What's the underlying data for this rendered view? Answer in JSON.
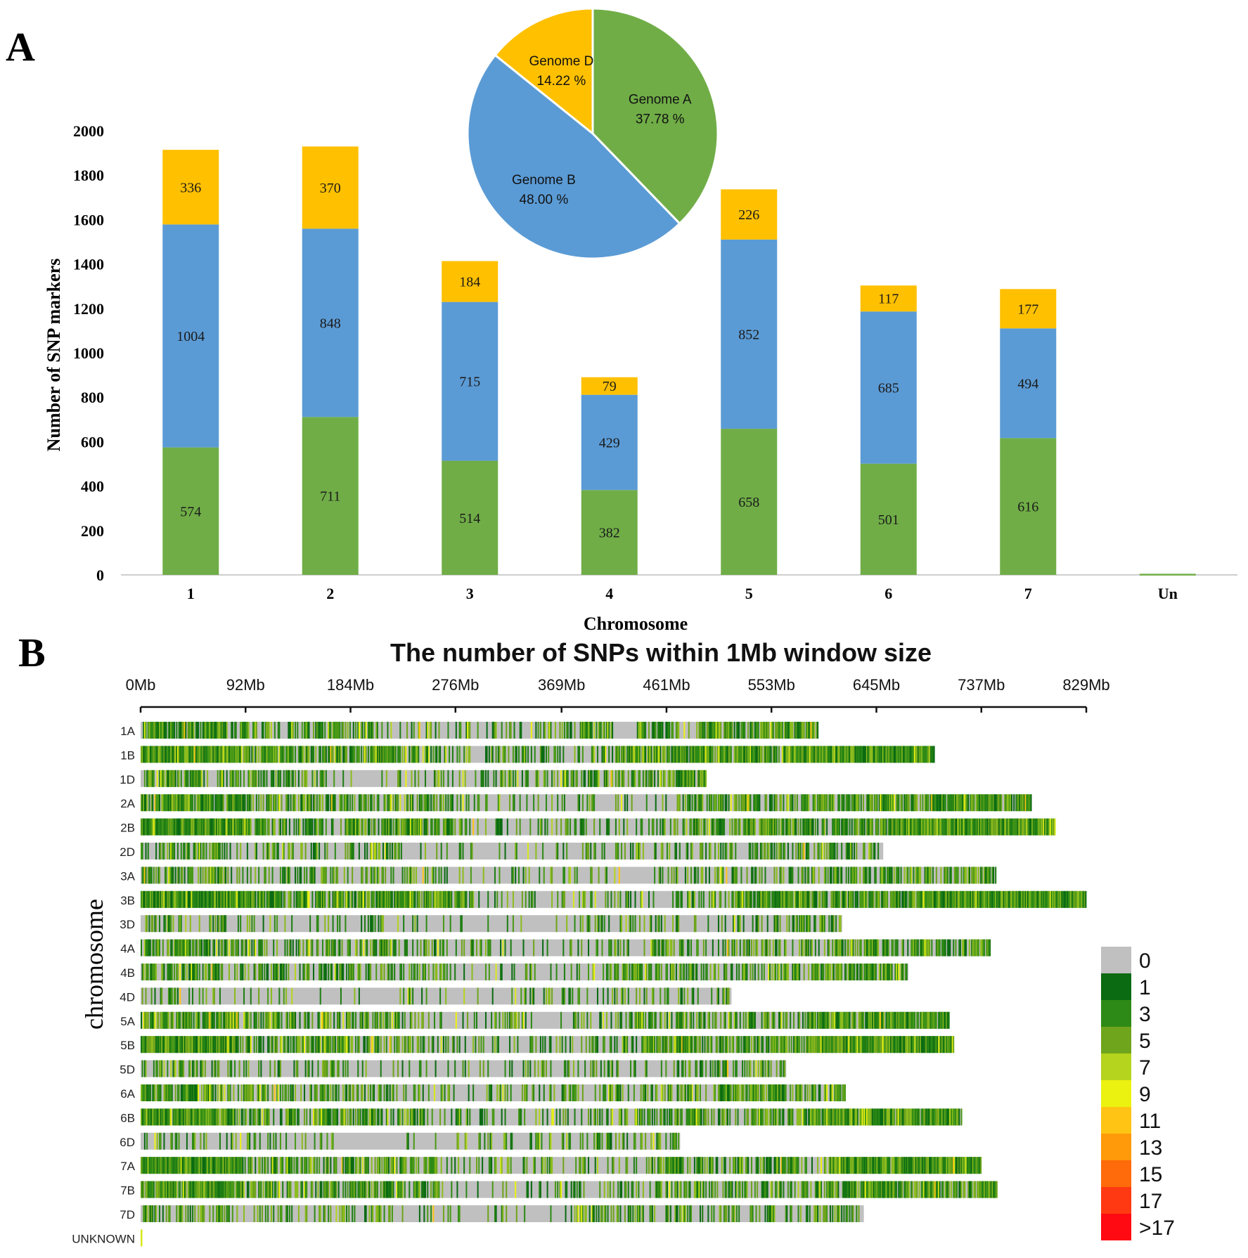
{
  "panel_labels": [
    "A",
    "B"
  ],
  "chart_data": [
    {
      "type": "bar",
      "stacked": true,
      "xlabel": "Chromosome",
      "ylabel": "Number of SNP markers",
      "ylim": [
        0,
        2000
      ],
      "yticks": [
        "0",
        "200",
        "400",
        "600",
        "800",
        "1000",
        "1200",
        "1400",
        "1600",
        "1800",
        "2000"
      ],
      "categories": [
        "1",
        "2",
        "3",
        "4",
        "5",
        "6",
        "7",
        "Un"
      ],
      "series": [
        {
          "color": "#70ad47",
          "values": [
            574,
            711,
            514,
            382,
            658,
            501,
            616,
            5
          ],
          "labels": [
            "574",
            "711",
            "514",
            "382",
            "658",
            "501",
            "616",
            ""
          ]
        },
        {
          "color": "#5b9bd5",
          "values": [
            1004,
            848,
            715,
            429,
            852,
            685,
            494,
            0
          ],
          "labels": [
            "1004",
            "848",
            "715",
            "429",
            "852",
            "685",
            "494",
            ""
          ]
        },
        {
          "color": "#ffc000",
          "values": [
            336,
            370,
            184,
            79,
            226,
            117,
            177,
            0
          ],
          "labels": [
            "336",
            "370",
            "184",
            "79",
            "226",
            "117",
            "177",
            ""
          ]
        }
      ],
      "grid": false
    },
    {
      "type": "pie",
      "slices": [
        {
          "name": "Genome A",
          "label": "37.78 %",
          "value": 37.78,
          "color": "#70ad47"
        },
        {
          "name": "Genome B",
          "label": "48.00 %",
          "value": 48.0,
          "color": "#5b9bd5"
        },
        {
          "name": "Genome D",
          "label": "14.22 %",
          "value": 14.22,
          "color": "#ffc000"
        }
      ]
    },
    {
      "type": "heatmap",
      "title": "The number of SNPs within 1Mb window size",
      "ylabel": "chromosome",
      "xlim": [
        0,
        829
      ],
      "xticks": [
        {
          "label": "0Mb",
          "value": 0
        },
        {
          "label": "92Mb",
          "value": 92
        },
        {
          "label": "184Mb",
          "value": 184
        },
        {
          "label": "276Mb",
          "value": 276
        },
        {
          "label": "369Mb",
          "value": 369
        },
        {
          "label": "461Mb",
          "value": 461
        },
        {
          "label": "553Mb",
          "value": 553
        },
        {
          "label": "645Mb",
          "value": 645
        },
        {
          "label": "737Mb",
          "value": 737
        },
        {
          "label": "829Mb",
          "value": 829
        }
      ],
      "chromosomes": [
        {
          "name": "1A",
          "length_mb": 594,
          "seed": 11,
          "density": 0.55,
          "gaps": [
            [
              415,
              434
            ]
          ]
        },
        {
          "name": "1B",
          "length_mb": 696,
          "seed": 12,
          "density": 0.85,
          "gaps": []
        },
        {
          "name": "1D",
          "length_mb": 496,
          "seed": 13,
          "density": 0.45,
          "gaps": []
        },
        {
          "name": "2A",
          "length_mb": 781,
          "seed": 21,
          "density": 0.6,
          "gaps": []
        },
        {
          "name": "2B",
          "length_mb": 802,
          "seed": 22,
          "density": 0.7,
          "gaps": []
        },
        {
          "name": "2D",
          "length_mb": 651,
          "seed": 23,
          "density": 0.35,
          "gaps": []
        },
        {
          "name": "3A",
          "length_mb": 750,
          "seed": 31,
          "density": 0.45,
          "gaps": []
        },
        {
          "name": "3B",
          "length_mb": 829,
          "seed": 32,
          "density": 0.8,
          "gaps": []
        },
        {
          "name": "3D",
          "length_mb": 615,
          "seed": 33,
          "density": 0.3,
          "gaps": []
        },
        {
          "name": "4A",
          "length_mb": 745,
          "seed": 41,
          "density": 0.5,
          "gaps": []
        },
        {
          "name": "4B",
          "length_mb": 673,
          "seed": 42,
          "density": 0.5,
          "gaps": []
        },
        {
          "name": "4D",
          "length_mb": 518,
          "seed": 43,
          "density": 0.2,
          "gaps": []
        },
        {
          "name": "5A",
          "length_mb": 709,
          "seed": 51,
          "density": 0.6,
          "gaps": []
        },
        {
          "name": "5B",
          "length_mb": 713,
          "seed": 52,
          "density": 0.7,
          "gaps": []
        },
        {
          "name": "5D",
          "length_mb": 566,
          "seed": 53,
          "density": 0.3,
          "gaps": []
        },
        {
          "name": "6A",
          "length_mb": 618,
          "seed": 61,
          "density": 0.5,
          "gaps": []
        },
        {
          "name": "6B",
          "length_mb": 720,
          "seed": 62,
          "density": 0.65,
          "gaps": []
        },
        {
          "name": "6D",
          "length_mb": 473,
          "seed": 63,
          "density": 0.25,
          "gaps": []
        },
        {
          "name": "7A",
          "length_mb": 737,
          "seed": 71,
          "density": 0.65,
          "gaps": []
        },
        {
          "name": "7B",
          "length_mb": 751,
          "seed": 72,
          "density": 0.6,
          "gaps": []
        },
        {
          "name": "7D",
          "length_mb": 634,
          "seed": 73,
          "density": 0.35,
          "gaps": []
        },
        {
          "name": "UNKNOWN",
          "length_mb": 1,
          "seed": 99,
          "density": 1,
          "gaps": []
        }
      ],
      "legend": [
        {
          "label": "0",
          "color": "#c0c0c0"
        },
        {
          "label": "1",
          "color": "#0b6b12"
        },
        {
          "label": "3",
          "color": "#2e8a16"
        },
        {
          "label": "5",
          "color": "#6fa51c"
        },
        {
          "label": "7",
          "color": "#b5d41e"
        },
        {
          "label": "9",
          "color": "#ecf20f"
        },
        {
          "label": "11",
          "color": "#ffc414"
        },
        {
          "label": "13",
          "color": "#ff9a0a"
        },
        {
          "label": "15",
          "color": "#ff6a0a"
        },
        {
          "label": "17",
          "color": "#ff3a12"
        },
        {
          "label": ">17",
          "color": "#ff0a12"
        }
      ]
    }
  ]
}
